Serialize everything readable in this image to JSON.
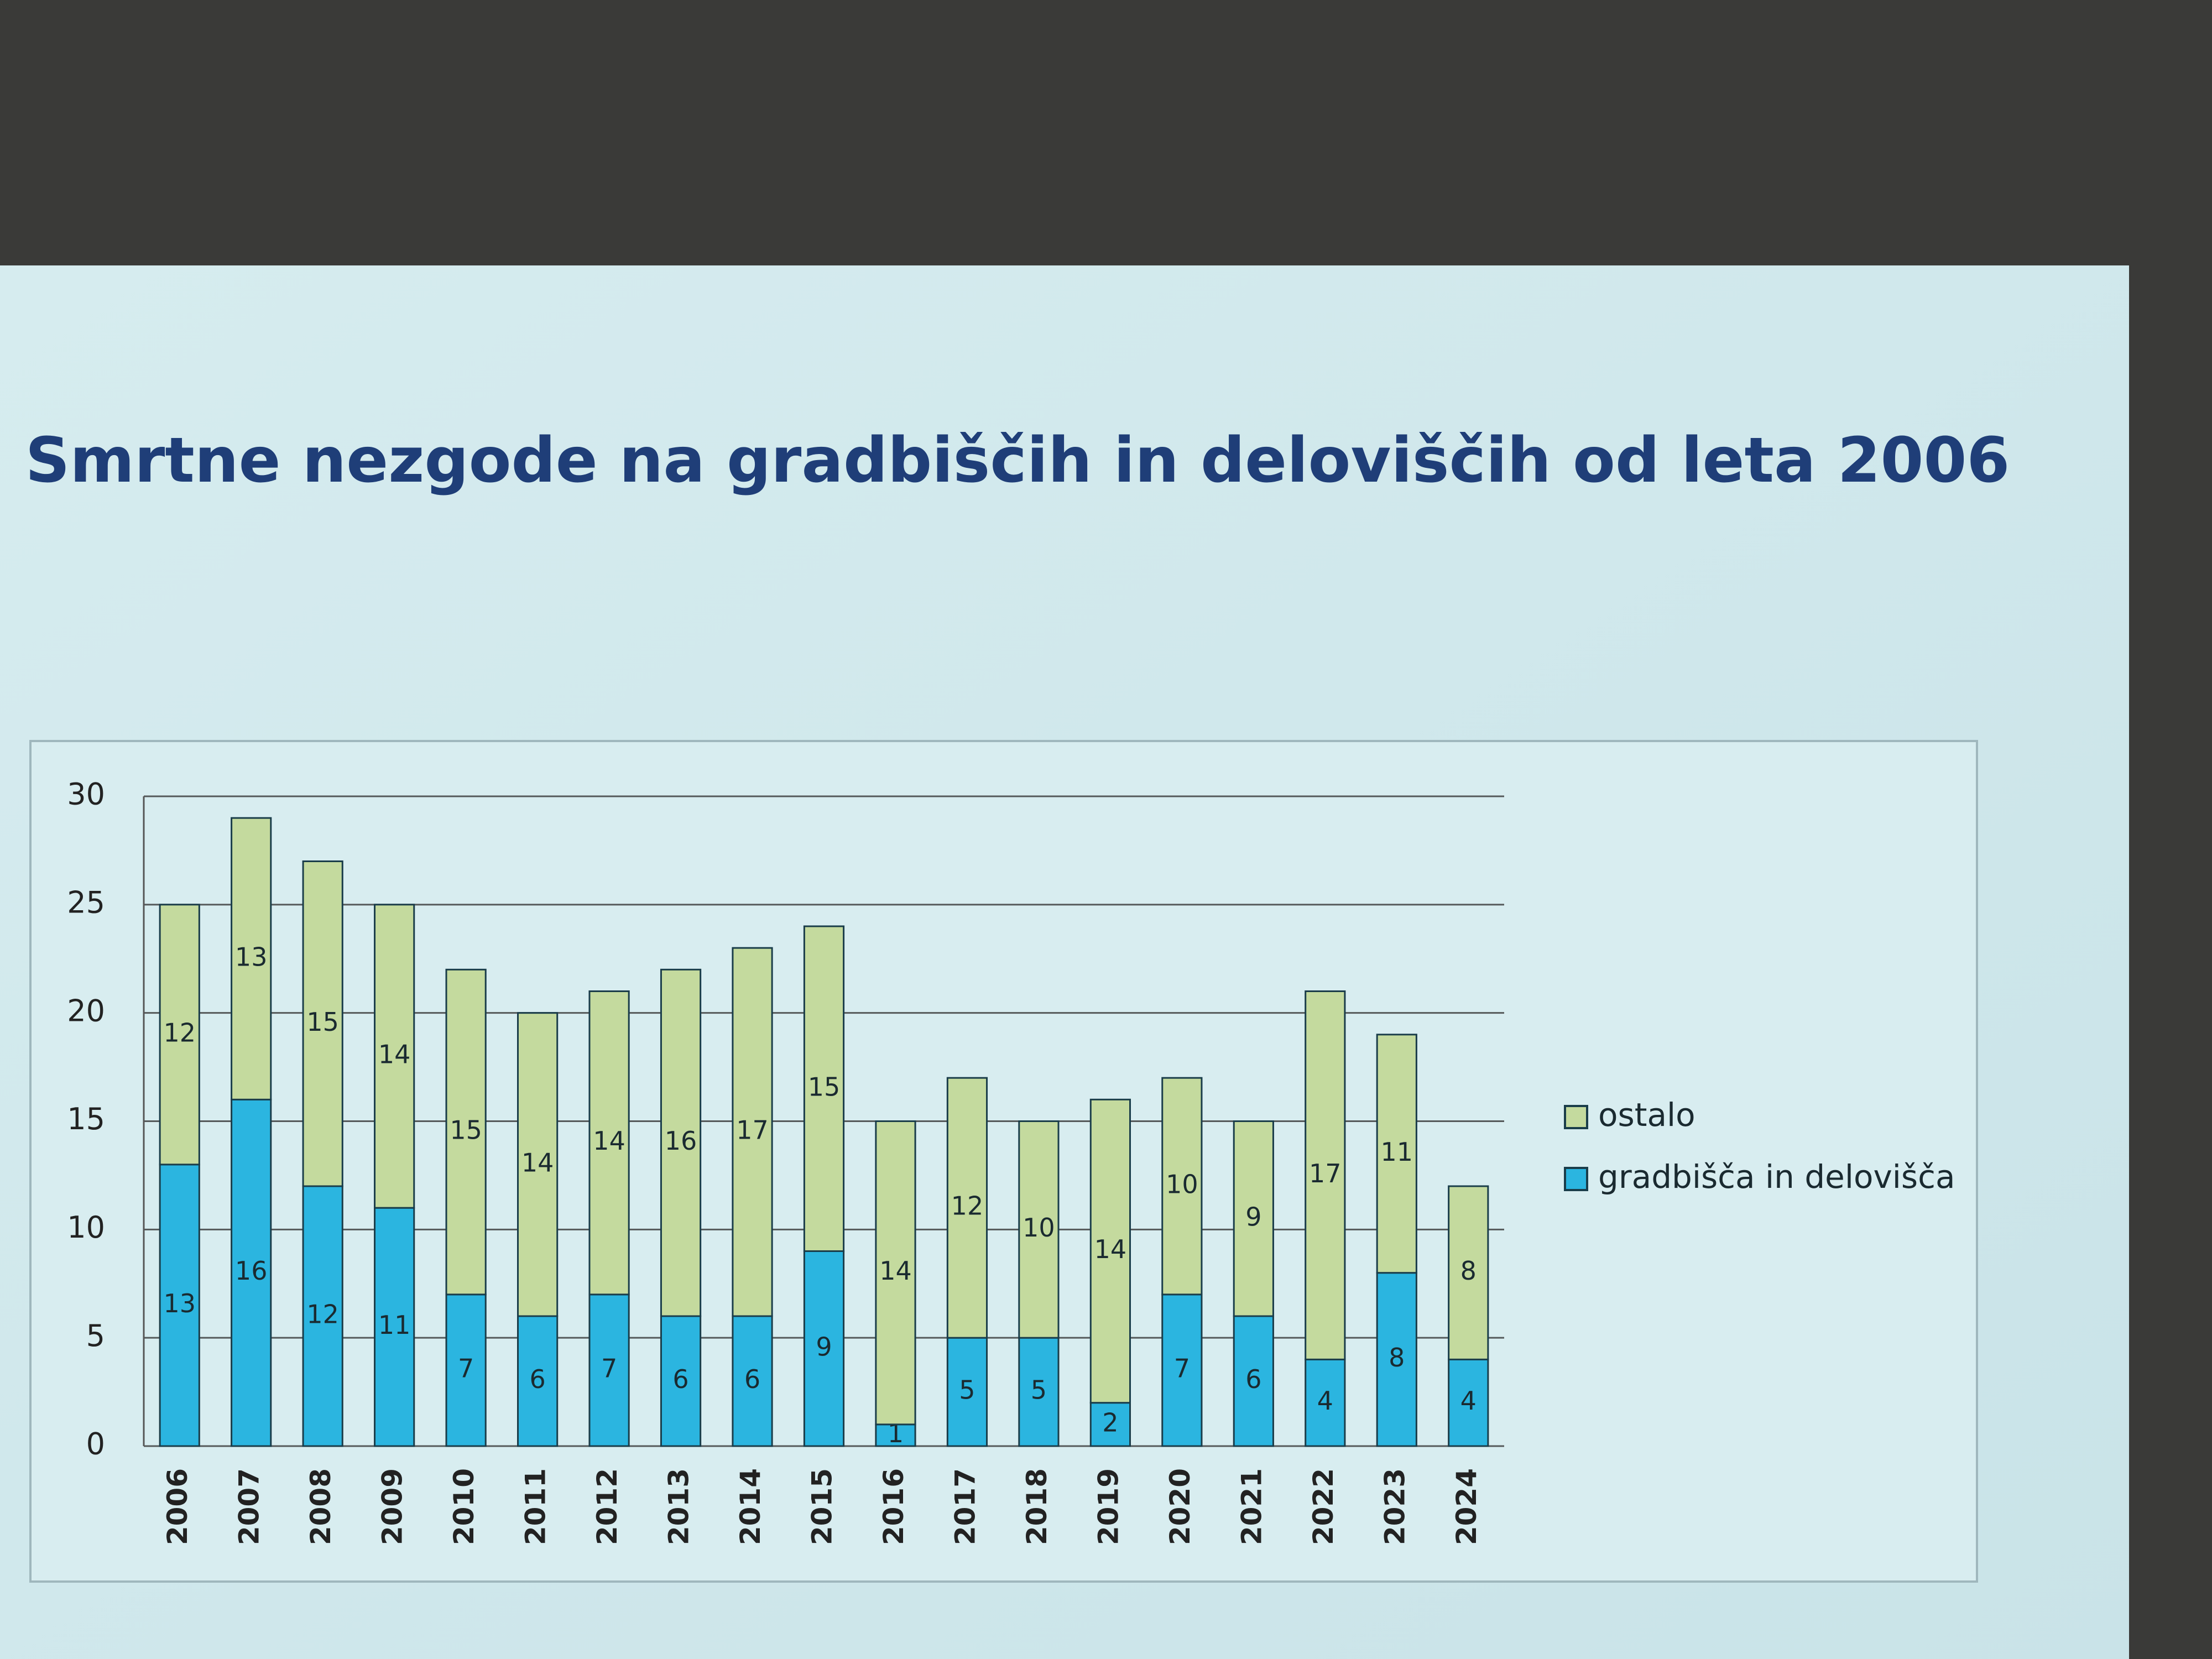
{
  "chart_data": {
    "type": "bar",
    "stacked": true,
    "title": "Smrtne nezgode na gradbiščih in deloviščih od leta 2006",
    "categories": [
      "2006",
      "2007",
      "2008",
      "2009",
      "2010",
      "2011",
      "2012",
      "2013",
      "2014",
      "2015",
      "2016",
      "2017",
      "2018",
      "2019",
      "2020",
      "2021",
      "2022",
      "2023",
      "2024"
    ],
    "series": [
      {
        "name": "gradbišča in delovišča",
        "color": "#2bb5e0",
        "values": [
          13,
          16,
          12,
          11,
          7,
          6,
          7,
          6,
          6,
          9,
          1,
          5,
          5,
          2,
          7,
          6,
          4,
          8,
          4
        ]
      },
      {
        "name": "ostalo",
        "color": "#c4da9e",
        "values": [
          12,
          13,
          15,
          14,
          15,
          14,
          14,
          16,
          17,
          15,
          14,
          12,
          10,
          14,
          10,
          9,
          17,
          11,
          8
        ]
      }
    ],
    "ylim": [
      0,
      30
    ],
    "yticks": [
      0,
      5,
      10,
      15,
      20,
      25,
      30
    ],
    "grid": true,
    "legend": "right"
  }
}
